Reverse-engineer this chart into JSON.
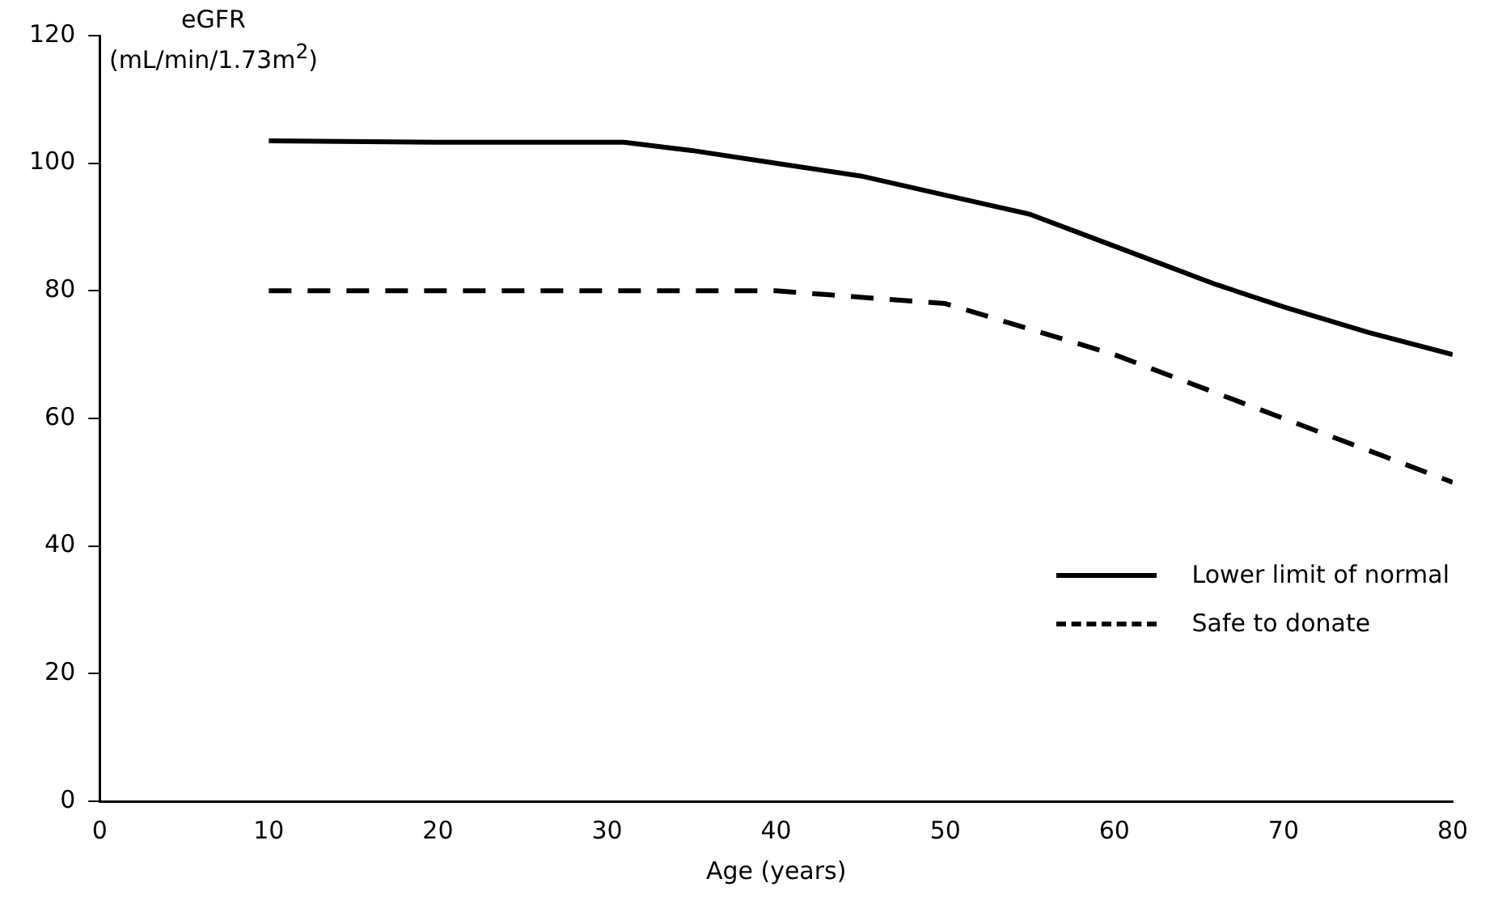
{
  "chart_data": {
    "type": "line",
    "ylabel": "eGFR (mL/min/1.73m$^{2}$)",
    "xlabel": "Age (years)",
    "xlim": [
      0,
      80
    ],
    "xticks": [
      0,
      10,
      20,
      30,
      40,
      50,
      60,
      70,
      80
    ],
    "ylim": [
      0,
      120
    ],
    "yticks": [
      0,
      20,
      40,
      60,
      80,
      100,
      120
    ],
    "grid": false,
    "legend": "bottom right",
    "marker": "none",
    "series": [
      {
        "name": "Lower limit of normal",
        "color": "#000000",
        "line_style": "solid",
        "x": [
          10,
          20,
          31,
          35,
          40,
          45,
          50,
          55,
          58,
          62,
          66,
          70,
          75,
          80
        ],
        "values": [
          103.5,
          103.3,
          103.3,
          102,
          100,
          98,
          95,
          92,
          89,
          85,
          81,
          77.5,
          73.5,
          70
        ]
      },
      {
        "name": "Safe to donate",
        "color": "#000000",
        "line_style": "dashed",
        "x": [
          10,
          20,
          30,
          40,
          45,
          50,
          55,
          60,
          65,
          70,
          75,
          80
        ],
        "values": [
          80,
          80,
          80,
          80,
          79,
          78,
          74,
          70,
          65,
          60,
          55,
          50
        ]
      }
    ]
  }
}
